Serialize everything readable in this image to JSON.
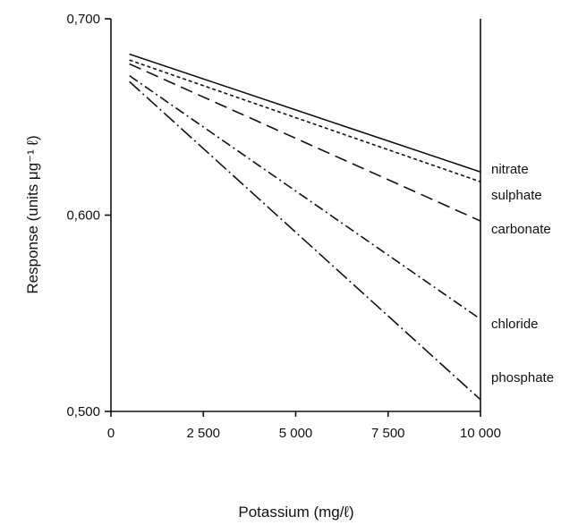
{
  "chart_data": {
    "type": "line",
    "xlabel": "Potassium (mg/ℓ)",
    "ylabel": "Response (units μg⁻¹ ℓ)",
    "xlim": [
      0,
      10000
    ],
    "ylim": [
      0.5,
      0.7
    ],
    "xticks": [
      {
        "value": 0,
        "label": "0"
      },
      {
        "value": 2500,
        "label": "2 500"
      },
      {
        "value": 5000,
        "label": "5 000"
      },
      {
        "value": 7500,
        "label": "7 500"
      },
      {
        "value": 10000,
        "label": "10 000"
      }
    ],
    "yticks": [
      {
        "value": 0.5,
        "label": "0,500"
      },
      {
        "value": 0.6,
        "label": "0,600"
      },
      {
        "value": 0.7,
        "label": "0,700"
      }
    ],
    "grid": false,
    "legend": "direct labels at right end of lines",
    "series": [
      {
        "name": "nitrate",
        "style": "solid",
        "x": [
          500,
          10000
        ],
        "y": [
          0.682,
          0.622
        ]
      },
      {
        "name": "sulphate",
        "style": "short-dash",
        "x": [
          500,
          10000
        ],
        "y": [
          0.679,
          0.617
        ]
      },
      {
        "name": "carbonate",
        "style": "long-dash",
        "x": [
          500,
          10000
        ],
        "y": [
          0.677,
          0.597
        ]
      },
      {
        "name": "chloride",
        "style": "dash-dot",
        "x": [
          500,
          10000
        ],
        "y": [
          0.671,
          0.547
        ]
      },
      {
        "name": "phosphate",
        "style": "long-dash-dot",
        "x": [
          500,
          10000
        ],
        "y": [
          0.668,
          0.506
        ]
      }
    ]
  }
}
